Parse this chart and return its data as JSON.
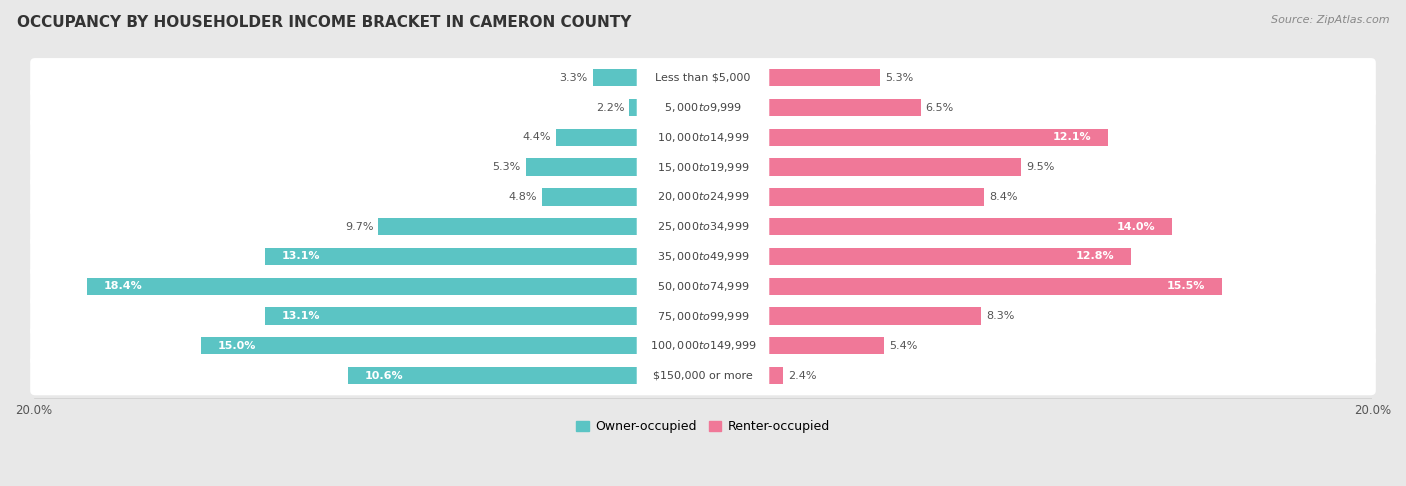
{
  "title": "OCCUPANCY BY HOUSEHOLDER INCOME BRACKET IN CAMERON COUNTY",
  "source": "Source: ZipAtlas.com",
  "categories": [
    "Less than $5,000",
    "$5,000 to $9,999",
    "$10,000 to $14,999",
    "$15,000 to $19,999",
    "$20,000 to $24,999",
    "$25,000 to $34,999",
    "$35,000 to $49,999",
    "$50,000 to $74,999",
    "$75,000 to $99,999",
    "$100,000 to $149,999",
    "$150,000 or more"
  ],
  "owner_values": [
    3.3,
    2.2,
    4.4,
    5.3,
    4.8,
    9.7,
    13.1,
    18.4,
    13.1,
    15.0,
    10.6
  ],
  "renter_values": [
    5.3,
    6.5,
    12.1,
    9.5,
    8.4,
    14.0,
    12.8,
    15.5,
    8.3,
    5.4,
    2.4
  ],
  "owner_color": "#5BC4C4",
  "renter_color": "#F07898",
  "background_color": "#e8e8e8",
  "row_bg_color": "#ffffff",
  "label_box_color": "#ffffff",
  "xlim": 20.0,
  "legend_owner": "Owner-occupied",
  "legend_renter": "Renter-occupied",
  "title_fontsize": 11,
  "source_fontsize": 8,
  "label_fontsize": 9,
  "category_fontsize": 8,
  "value_fontsize": 8,
  "axis_label_fontsize": 8.5
}
